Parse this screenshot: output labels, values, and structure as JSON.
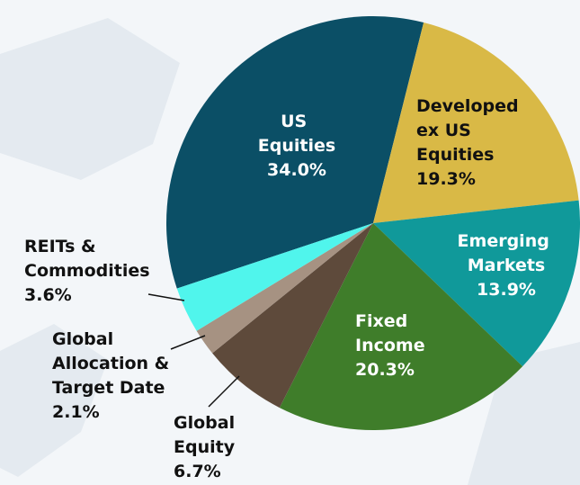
{
  "chart_data": {
    "type": "pie",
    "categories": [
      "US Equities",
      "Developed ex US Equities",
      "Emerging Markets",
      "Fixed Income",
      "Global Equity",
      "Global Allocation & Target Date",
      "REITs & Commodities"
    ],
    "values": [
      34.0,
      19.3,
      13.9,
      20.3,
      6.7,
      2.1,
      3.6
    ],
    "value_labels": [
      "34.0%",
      "19.3%",
      "13.9%",
      "20.3%",
      "6.7%",
      "2.1%",
      "3.6%"
    ],
    "colors": [
      "#0b4f66",
      "#d9b946",
      "#10999a",
      "#3f7d2a",
      "#5e4a3b",
      "#a69282",
      "#50f5ec"
    ]
  }
}
